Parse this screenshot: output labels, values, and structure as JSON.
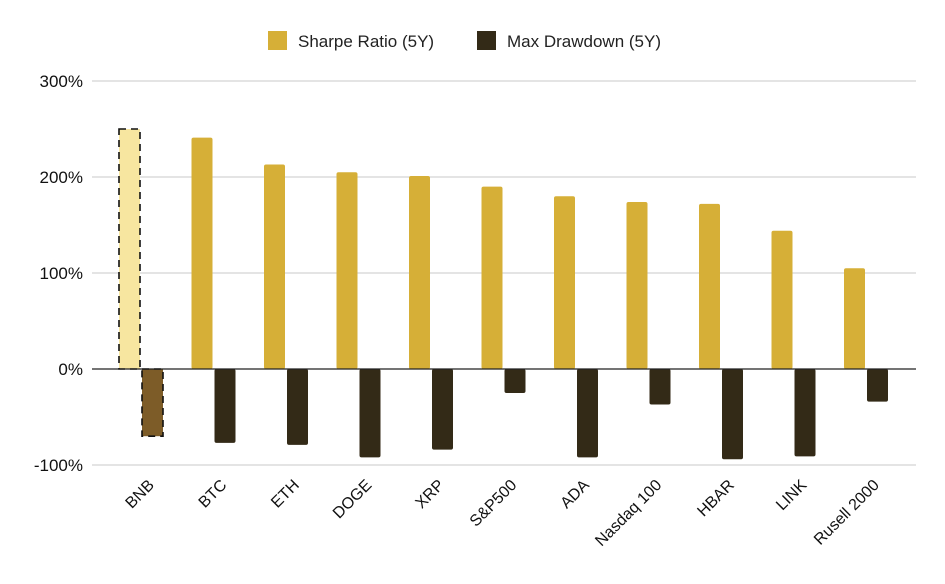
{
  "chart_data": {
    "type": "bar",
    "title": "",
    "xlabel": "",
    "ylabel": "",
    "categories": [
      "BNB",
      "BTC",
      "ETH",
      "DOGE",
      "XRP",
      "S&P500",
      "ADA",
      "Nasdaq 100",
      "HBAR",
      "LINK",
      "Rusell 2000"
    ],
    "series": [
      {
        "name": "Sharpe Ratio (5Y)",
        "color": "#D6AF37",
        "values": [
          250,
          241,
          213,
          205,
          201,
          190,
          180,
          174,
          172,
          144,
          105
        ]
      },
      {
        "name": "Max Drawdown (5Y)",
        "color": "#332A17",
        "values": [
          -70,
          -77,
          -79,
          -92,
          -84,
          -25,
          -92,
          -37,
          -94,
          -91,
          -34
        ]
      }
    ],
    "highlight": {
      "category": "BNB",
      "sharpe_color": "#F7E6A0",
      "drawdown_color": "#7D5C28"
    },
    "ylim": [
      -100,
      300
    ],
    "yticks": [
      -100,
      0,
      100,
      200,
      300
    ],
    "ytick_labels": [
      "-100%",
      "0%",
      "100%",
      "200%",
      "300%"
    ],
    "grid": true,
    "legend_position": "top-center"
  }
}
